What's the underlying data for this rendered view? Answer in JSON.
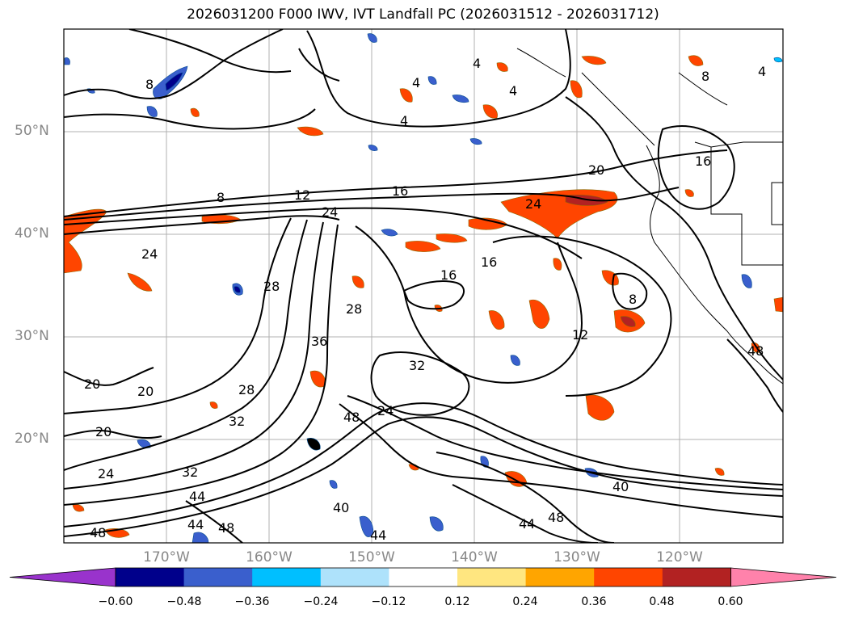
{
  "title": "2026031200 F000 IWV, IVT Landfall PC (2026031512 - 2026031712)",
  "lat_labels": [
    "50°N",
    "40°N",
    "30°N",
    "20°N"
  ],
  "lon_labels": [
    "170°W",
    "160°W",
    "150°W",
    "140°W",
    "130°W",
    "120°W"
  ],
  "colorbar": {
    "ticks": [
      "−0.60",
      "−0.48",
      "−0.36",
      "−0.24",
      "−0.12",
      "0.12",
      "0.24",
      "0.36",
      "0.48",
      "0.60"
    ],
    "colors": [
      "#9933cc",
      "#00008b",
      "#3a5fcd",
      "#00bfff",
      "#aee2fb",
      "#ffffff",
      "#ffe680",
      "#ffa500",
      "#ff4500",
      "#b22222",
      "#ff82ab"
    ]
  },
  "contour_labels": [
    {
      "text": "8"
    },
    {
      "text": "12"
    },
    {
      "text": "16"
    },
    {
      "text": "20"
    },
    {
      "text": "24"
    },
    {
      "text": "24"
    },
    {
      "text": "28"
    },
    {
      "text": "28"
    },
    {
      "text": "32"
    },
    {
      "text": "36"
    },
    {
      "text": "16"
    },
    {
      "text": "16"
    },
    {
      "text": "8"
    },
    {
      "text": "12"
    },
    {
      "text": "40"
    },
    {
      "text": "44"
    },
    {
      "text": "48"
    },
    {
      "text": "48"
    },
    {
      "text": "44"
    },
    {
      "text": "48"
    },
    {
      "text": "24"
    },
    {
      "text": "32"
    },
    {
      "text": "20"
    },
    {
      "text": "20"
    },
    {
      "text": "20"
    },
    {
      "text": "24"
    },
    {
      "text": "32"
    },
    {
      "text": "44"
    },
    {
      "text": "40"
    },
    {
      "text": "44"
    },
    {
      "text": "48"
    },
    {
      "text": "4"
    },
    {
      "text": "4"
    },
    {
      "text": "4"
    },
    {
      "text": "4"
    },
    {
      "text": "8"
    },
    {
      "text": "16"
    },
    {
      "text": "24"
    },
    {
      "text": "28"
    },
    {
      "text": "48"
    },
    {
      "text": "8"
    },
    {
      "text": "4"
    }
  ]
}
